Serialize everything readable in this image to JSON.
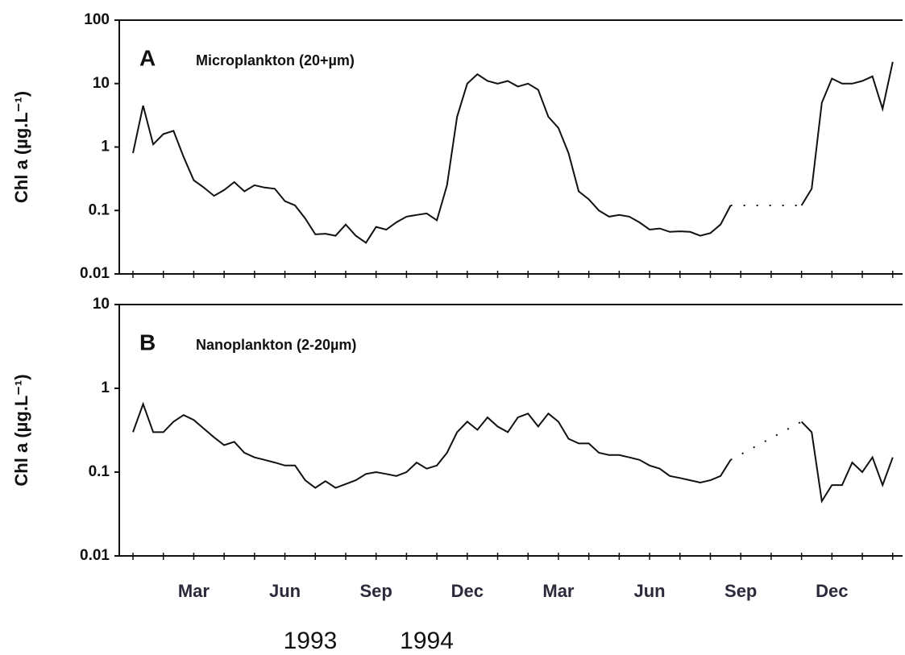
{
  "chart_data": {
    "type": "line",
    "ylog": true,
    "categories": [
      null,
      null,
      null,
      null,
      null,
      null,
      "Mar",
      null,
      null,
      null,
      null,
      null,
      null,
      null,
      null,
      "Jun",
      null,
      null,
      null,
      null,
      null,
      null,
      null,
      null,
      "Sep",
      null,
      null,
      null,
      null,
      null,
      null,
      null,
      null,
      "Dec",
      null,
      null,
      null,
      null,
      null,
      null,
      null,
      null,
      "Mar",
      null,
      null,
      null,
      null,
      null,
      null,
      null,
      null,
      "Jun",
      null,
      null,
      null,
      null,
      null,
      null,
      null,
      null,
      "Sep",
      null,
      null,
      null,
      null,
      null,
      null,
      null,
      null,
      "Dec",
      null,
      null,
      null,
      null,
      null,
      null
    ],
    "x_groups": [
      "1993",
      "1994"
    ],
    "panels": [
      {
        "label": "A",
        "title": "Microplankton (20+µm)",
        "ylabel": "Chl a (µg.L⁻¹)",
        "ylim": [
          0.01,
          100
        ],
        "yticks": [
          0.01,
          0.1,
          1,
          10,
          100
        ],
        "series": [
          {
            "color": "#111111",
            "values": [
              0.8,
              4.5,
              1.1,
              1.6,
              1.8,
              0.7,
              0.3,
              0.23,
              0.17,
              0.21,
              0.28,
              0.2,
              0.25,
              0.23,
              0.22,
              0.14,
              0.12,
              0.075,
              0.042,
              0.043,
              0.04,
              0.06,
              0.04,
              0.031,
              0.055,
              0.05,
              0.065,
              0.08,
              0.085,
              0.09,
              0.07,
              0.25,
              3,
              10,
              14,
              11,
              10,
              11,
              9,
              10,
              8,
              3,
              2,
              0.8,
              0.2,
              0.15,
              0.1,
              0.08,
              0.085,
              0.08,
              0.065,
              0.05,
              0.052,
              0.046,
              0.047,
              0.046,
              0.04,
              0.044,
              0.06,
              0.12,
              null,
              null,
              null,
              null,
              null,
              null,
              0.12,
              0.22,
              5,
              12,
              10,
              10,
              11,
              13,
              4,
              22
            ]
          }
        ]
      },
      {
        "label": "B",
        "title": "Nanoplankton (2-20µm)",
        "ylabel": "Chl a (µg.L⁻¹)",
        "ylim": [
          0.01,
          10
        ],
        "yticks": [
          0.01,
          0.1,
          1,
          10
        ],
        "series": [
          {
            "color": "#111111",
            "values": [
              0.3,
              0.65,
              0.3,
              0.3,
              0.4,
              0.48,
              0.42,
              0.33,
              0.26,
              0.21,
              0.23,
              0.17,
              0.15,
              0.14,
              0.13,
              0.12,
              0.12,
              0.08,
              0.065,
              0.078,
              0.065,
              0.072,
              0.08,
              0.095,
              0.1,
              0.095,
              0.09,
              0.1,
              0.13,
              0.11,
              0.12,
              0.17,
              0.3,
              0.4,
              0.32,
              0.45,
              0.35,
              0.3,
              0.45,
              0.5,
              0.35,
              0.5,
              0.4,
              0.25,
              0.22,
              0.22,
              0.17,
              0.16,
              0.16,
              0.15,
              0.14,
              0.12,
              0.11,
              0.09,
              0.085,
              0.08,
              0.075,
              0.08,
              0.09,
              0.14,
              null,
              null,
              null,
              null,
              null,
              null,
              0.4,
              0.3,
              0.045,
              0.07,
              0.07,
              0.13,
              0.1,
              0.15,
              0.07,
              0.15
            ]
          }
        ]
      }
    ]
  }
}
